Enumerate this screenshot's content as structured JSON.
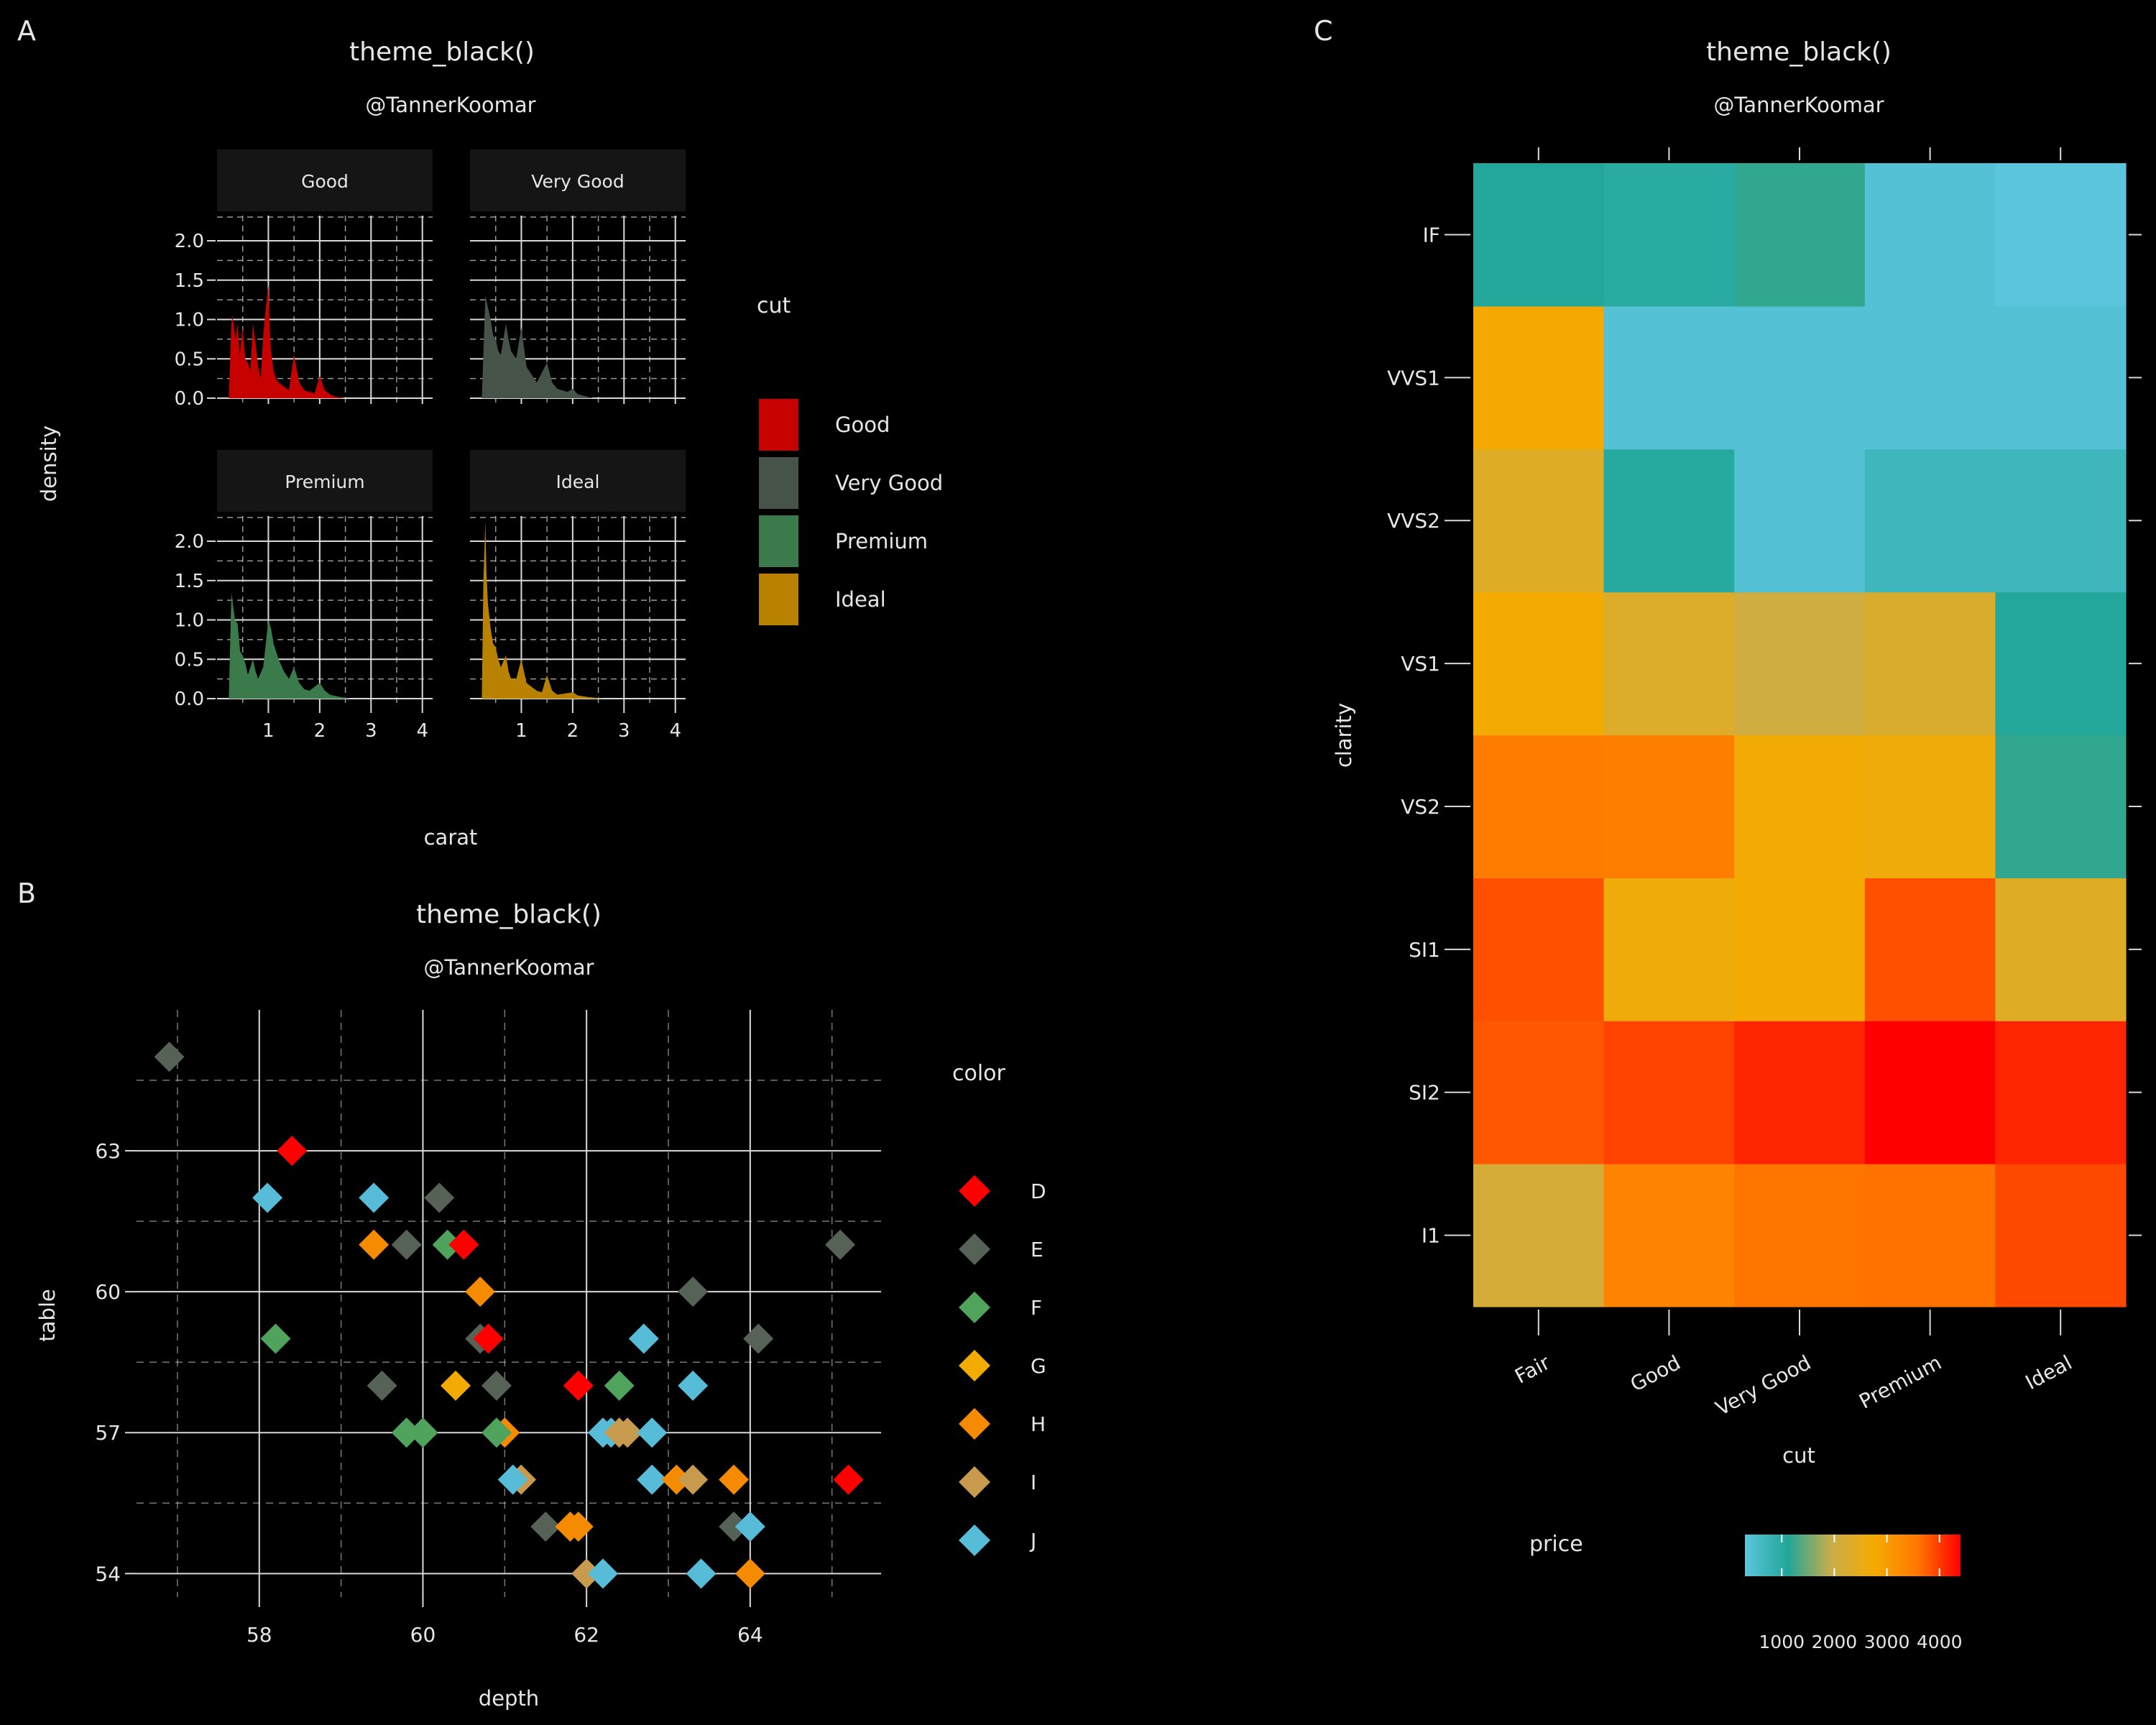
{
  "colors": {
    "background": "#000000",
    "text": "#e6e6e6",
    "grid": "#d9d9d9",
    "strip": "#151515"
  },
  "chart_data": [
    {
      "panel_tag": "A",
      "type": "area",
      "title": "theme_black()",
      "subtitle": "@TannerKoomar",
      "xlabel": "carat",
      "ylabel": "density",
      "xlim": [
        0,
        4.2
      ],
      "ylim": [
        0,
        2.1
      ],
      "x_ticks": [
        "1",
        "2",
        "3",
        "4"
      ],
      "y_ticks": [
        "0.0",
        "0.5",
        "1.0",
        "1.5",
        "2.0"
      ],
      "legend": {
        "title": "cut",
        "position": "right",
        "entries": [
          {
            "label": "Good",
            "color": "#c70000"
          },
          {
            "label": "Very Good",
            "color": "#455348"
          },
          {
            "label": "Premium",
            "color": "#3b7a4b"
          },
          {
            "label": "Ideal",
            "color": "#b88200"
          }
        ]
      },
      "facets": [
        {
          "strip": "Good",
          "color": "#c70000",
          "x": [
            0.23,
            0.28,
            0.3,
            0.33,
            0.36,
            0.4,
            0.44,
            0.5,
            0.55,
            0.6,
            0.65,
            0.7,
            0.75,
            0.8,
            0.85,
            0.9,
            0.95,
            1.0,
            1.02,
            1.05,
            1.1,
            1.15,
            1.2,
            1.3,
            1.4,
            1.5,
            1.6,
            1.7,
            1.8,
            1.9,
            2.0,
            2.1,
            2.2,
            2.3,
            2.5
          ],
          "y": [
            0,
            0.95,
            1.05,
            0.9,
            0.75,
            0.95,
            0.55,
            0.9,
            0.5,
            0.45,
            0.35,
            0.95,
            0.7,
            0.4,
            0.25,
            0.8,
            1.15,
            1.45,
            1.0,
            0.6,
            0.35,
            0.25,
            0.2,
            0.15,
            0.1,
            0.55,
            0.2,
            0.1,
            0.08,
            0.06,
            0.28,
            0.1,
            0.05,
            0.02,
            0
          ]
        },
        {
          "strip": "Very Good",
          "color": "#455348",
          "x": [
            0.23,
            0.3,
            0.35,
            0.4,
            0.45,
            0.5,
            0.55,
            0.6,
            0.7,
            0.75,
            0.8,
            0.9,
            1.0,
            1.05,
            1.1,
            1.2,
            1.3,
            1.5,
            1.6,
            1.7,
            1.9,
            2.0,
            2.1,
            2.4
          ],
          "y": [
            0,
            1.3,
            1.15,
            1.0,
            0.8,
            0.75,
            0.6,
            0.55,
            0.95,
            0.75,
            0.6,
            0.5,
            0.9,
            0.65,
            0.4,
            0.3,
            0.2,
            0.45,
            0.2,
            0.12,
            0.08,
            0.12,
            0.05,
            0
          ]
        },
        {
          "strip": "Premium",
          "color": "#3b7a4b",
          "x": [
            0.23,
            0.28,
            0.31,
            0.35,
            0.4,
            0.45,
            0.5,
            0.55,
            0.6,
            0.7,
            0.75,
            0.8,
            0.9,
            1.0,
            1.05,
            1.1,
            1.2,
            1.3,
            1.4,
            1.5,
            1.6,
            1.7,
            1.8,
            2.0,
            2.1,
            2.2,
            2.4,
            2.6
          ],
          "y": [
            0,
            1.35,
            1.2,
            1.0,
            0.95,
            0.6,
            0.55,
            0.45,
            0.3,
            0.5,
            0.35,
            0.25,
            0.4,
            1.0,
            0.9,
            0.7,
            0.5,
            0.35,
            0.25,
            0.4,
            0.2,
            0.12,
            0.1,
            0.2,
            0.1,
            0.05,
            0.02,
            0
          ]
        },
        {
          "strip": "Ideal",
          "color": "#b88200",
          "x": [
            0.23,
            0.26,
            0.3,
            0.32,
            0.35,
            0.4,
            0.45,
            0.5,
            0.55,
            0.6,
            0.7,
            0.75,
            0.8,
            0.9,
            1.0,
            1.05,
            1.1,
            1.2,
            1.3,
            1.4,
            1.5,
            1.6,
            1.7,
            2.0,
            2.1,
            2.3,
            2.6
          ],
          "y": [
            0,
            1.5,
            2.25,
            1.6,
            1.2,
            0.9,
            0.7,
            0.65,
            0.5,
            0.4,
            0.55,
            0.35,
            0.25,
            0.25,
            0.5,
            0.35,
            0.2,
            0.15,
            0.1,
            0.08,
            0.3,
            0.1,
            0.05,
            0.08,
            0.04,
            0.02,
            0
          ]
        }
      ]
    },
    {
      "panel_tag": "B",
      "type": "scatter",
      "title": "theme_black()",
      "subtitle": "@TannerKoomar",
      "xlabel": "depth",
      "ylabel": "table",
      "xlim": [
        56.5,
        65.6
      ],
      "ylim": [
        53.5,
        66
      ],
      "x_ticks": [
        58,
        60,
        62,
        64
      ],
      "y_ticks": [
        54,
        57,
        60,
        63
      ],
      "grid": true,
      "legend": {
        "title": "color",
        "position": "right",
        "entries": [
          {
            "label": "D",
            "color": "#ff0000"
          },
          {
            "label": "E",
            "color": "#556255"
          },
          {
            "label": "F",
            "color": "#4fa35c"
          },
          {
            "label": "G",
            "color": "#f2ab00"
          },
          {
            "label": "H",
            "color": "#f58b00"
          },
          {
            "label": "I",
            "color": "#c89a4e"
          },
          {
            "label": "J",
            "color": "#56bcd7"
          }
        ]
      },
      "points": [
        {
          "x": 56.9,
          "y": 65.0,
          "c": "E"
        },
        {
          "x": 58.4,
          "y": 63.0,
          "c": "D"
        },
        {
          "x": 58.1,
          "y": 62.0,
          "c": "J"
        },
        {
          "x": 59.4,
          "y": 62.0,
          "c": "J"
        },
        {
          "x": 60.2,
          "y": 62.0,
          "c": "E"
        },
        {
          "x": 59.4,
          "y": 61.0,
          "c": "H"
        },
        {
          "x": 59.8,
          "y": 61.0,
          "c": "E"
        },
        {
          "x": 60.3,
          "y": 61.0,
          "c": "F"
        },
        {
          "x": 60.5,
          "y": 61.0,
          "c": "D"
        },
        {
          "x": 65.1,
          "y": 61.0,
          "c": "E"
        },
        {
          "x": 60.7,
          "y": 60.0,
          "c": "H"
        },
        {
          "x": 63.3,
          "y": 60.0,
          "c": "E"
        },
        {
          "x": 58.2,
          "y": 59.0,
          "c": "F"
        },
        {
          "x": 60.7,
          "y": 59.0,
          "c": "E"
        },
        {
          "x": 60.8,
          "y": 59.0,
          "c": "D"
        },
        {
          "x": 62.7,
          "y": 59.0,
          "c": "J"
        },
        {
          "x": 64.1,
          "y": 59.0,
          "c": "E"
        },
        {
          "x": 59.5,
          "y": 58.0,
          "c": "E"
        },
        {
          "x": 60.4,
          "y": 58.0,
          "c": "G"
        },
        {
          "x": 60.9,
          "y": 58.0,
          "c": "E"
        },
        {
          "x": 61.9,
          "y": 58.0,
          "c": "D"
        },
        {
          "x": 62.4,
          "y": 58.0,
          "c": "F"
        },
        {
          "x": 63.3,
          "y": 58.0,
          "c": "J"
        },
        {
          "x": 59.8,
          "y": 57.0,
          "c": "F"
        },
        {
          "x": 60.0,
          "y": 57.0,
          "c": "F"
        },
        {
          "x": 61.0,
          "y": 57.0,
          "c": "H"
        },
        {
          "x": 60.9,
          "y": 57.0,
          "c": "F"
        },
        {
          "x": 62.2,
          "y": 57.0,
          "c": "J"
        },
        {
          "x": 62.3,
          "y": 57.0,
          "c": "J"
        },
        {
          "x": 62.4,
          "y": 57.0,
          "c": "I"
        },
        {
          "x": 62.5,
          "y": 57.0,
          "c": "I"
        },
        {
          "x": 62.8,
          "y": 57.0,
          "c": "J"
        },
        {
          "x": 61.2,
          "y": 56.0,
          "c": "I"
        },
        {
          "x": 61.1,
          "y": 56.0,
          "c": "J"
        },
        {
          "x": 62.8,
          "y": 56.0,
          "c": "J"
        },
        {
          "x": 63.1,
          "y": 56.0,
          "c": "H"
        },
        {
          "x": 63.3,
          "y": 56.0,
          "c": "I"
        },
        {
          "x": 63.8,
          "y": 56.0,
          "c": "H"
        },
        {
          "x": 65.2,
          "y": 56.0,
          "c": "D"
        },
        {
          "x": 61.5,
          "y": 55.0,
          "c": "E"
        },
        {
          "x": 61.8,
          "y": 55.0,
          "c": "H"
        },
        {
          "x": 61.9,
          "y": 55.0,
          "c": "H"
        },
        {
          "x": 63.8,
          "y": 55.0,
          "c": "E"
        },
        {
          "x": 64.0,
          "y": 55.0,
          "c": "J"
        },
        {
          "x": 62.0,
          "y": 54.0,
          "c": "I"
        },
        {
          "x": 62.2,
          "y": 54.0,
          "c": "J"
        },
        {
          "x": 63.4,
          "y": 54.0,
          "c": "J"
        },
        {
          "x": 64.0,
          "y": 54.0,
          "c": "H"
        }
      ]
    },
    {
      "panel_tag": "C",
      "type": "heatmap",
      "title": "theme_black()",
      "subtitle": "@TannerKoomar",
      "xlabel": "cut",
      "ylabel": "clarity",
      "x_categories": [
        "Fair",
        "Good",
        "Very Good",
        "Premium",
        "Ideal"
      ],
      "y_categories": [
        "I1",
        "SI2",
        "SI1",
        "VS2",
        "VS1",
        "VVS2",
        "VVS1",
        "IF"
      ],
      "values": [
        [
          2150,
          3400,
          3600,
          3620,
          3900
        ],
        [
          3800,
          3950,
          4150,
          4400,
          4150
        ],
        [
          3850,
          2650,
          2750,
          3850,
          2350
        ],
        [
          3500,
          3480,
          2700,
          2650,
          1200
        ],
        [
          2750,
          2300,
          2050,
          2250,
          1100
        ],
        [
          2350,
          1050,
          400,
          700,
          700
        ],
        [
          2800,
          400,
          400,
          400,
          400
        ],
        [
          1100,
          1000,
          1200,
          400,
          300
        ]
      ],
      "legend": {
        "title": "price",
        "position": "bottom",
        "ticks": [
          1000,
          2000,
          3000,
          4000
        ],
        "range": [
          300,
          4400
        ],
        "gradient": [
          "#5bc5dd",
          "#21a698",
          "#c9ad4a",
          "#f5ab00",
          "#ff7800",
          "#ff0000"
        ]
      }
    }
  ]
}
